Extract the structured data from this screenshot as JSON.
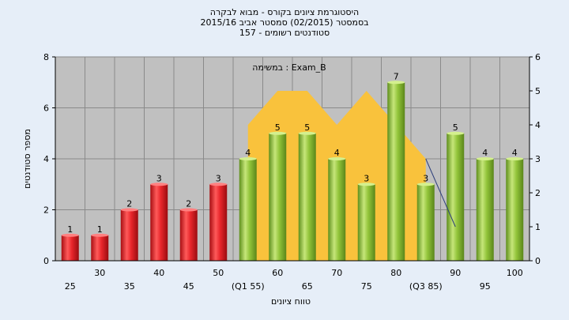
{
  "chart_data": {
    "type": "bar",
    "title_lines": [
      "היסטוגרמת ציונים בקורס - מבוא לבקרה",
      "בסמסטר  (02/2015)  סמסטר אביב 2015/16",
      "סטודנטים רשומים - 157"
    ],
    "annotation": "במשימה : Exam_B",
    "xlabel": "טווח ציונים",
    "ylabel": "מספר סטודנטים",
    "ylim": [
      0,
      8
    ],
    "y_ticks": [
      "0",
      "2",
      "4",
      "6",
      "8"
    ],
    "y2lim": [
      0,
      6
    ],
    "y2_ticks": [
      "0",
      "1",
      "2",
      "3",
      "4",
      "5",
      "6"
    ],
    "grid": true,
    "categories": [
      "25",
      "30",
      "35",
      "40",
      "45",
      "50",
      "(Q1 55)",
      "60",
      "65",
      "70",
      "75",
      "80",
      "(Q3 85)",
      "90",
      "95",
      "100"
    ],
    "values": [
      1,
      1,
      2,
      3,
      2,
      3,
      4,
      5,
      5,
      4,
      3,
      7,
      3,
      5,
      4,
      4
    ],
    "value_labels": [
      "1",
      "1",
      "2",
      "3",
      "2",
      "3",
      "4",
      "5",
      "5",
      "4",
      "3",
      "7",
      "3",
      "5",
      "4",
      "4"
    ],
    "bar_colors": [
      "red",
      "red",
      "red",
      "red",
      "red",
      "red",
      "green",
      "green",
      "green",
      "green",
      "green",
      "green",
      "green",
      "green",
      "green",
      "green"
    ],
    "colors": {
      "red_bar": "#e8262b",
      "green_bar": "#92c43a",
      "area_fill": "#f9c23c",
      "plot_bg": "#c0c0c0",
      "line": "#2c3e7a"
    },
    "area_series": {
      "axis": "y2",
      "x_start": "(Q1 55)",
      "points": [
        {
          "x": "(Q1 55)",
          "y": 4
        },
        {
          "x": "60",
          "y": 5
        },
        {
          "x": "65",
          "y": 5
        },
        {
          "x": "70",
          "y": 4
        },
        {
          "x": "75",
          "y": 5
        },
        {
          "x": "80",
          "y": 4
        },
        {
          "x": "(Q3 85)",
          "y": 3
        }
      ]
    },
    "line_series": {
      "axis": "y2",
      "points": [
        {
          "x": "(Q3 85)",
          "y": 3
        },
        {
          "x": "90",
          "y": 1
        }
      ]
    }
  }
}
